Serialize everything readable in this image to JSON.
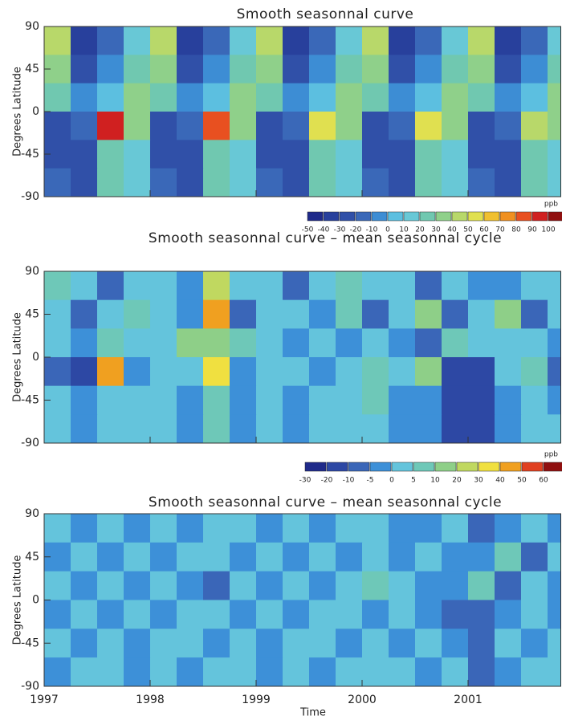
{
  "chart_data": [
    {
      "type": "heatmap",
      "title": "Smooth seasonnal curve",
      "ylabel": "Degrees Latitude",
      "x": [
        1997.125,
        1997.375,
        1997.625,
        1997.875,
        1998.125,
        1998.375,
        1998.625,
        1998.875,
        1999.125,
        1999.375,
        1999.625,
        1999.875,
        2000.125,
        2000.375,
        2000.625,
        2000.875,
        2001.125,
        2001.375,
        2001.625,
        2001.875
      ],
      "y": [
        75,
        45,
        15,
        -15,
        -45,
        -75
      ],
      "z": [
        [
          40,
          -40,
          -20,
          10,
          40,
          -40,
          -20,
          10,
          40,
          -40,
          -20,
          10,
          40,
          -40,
          -20,
          10,
          40,
          -40,
          -20,
          10
        ],
        [
          30,
          -30,
          -10,
          20,
          30,
          -30,
          -10,
          20,
          30,
          -30,
          -10,
          20,
          30,
          -30,
          -10,
          20,
          30,
          -30,
          -10,
          20
        ],
        [
          20,
          -10,
          0,
          30,
          20,
          -10,
          0,
          30,
          20,
          -10,
          0,
          30,
          20,
          -10,
          0,
          30,
          20,
          -10,
          0,
          30
        ],
        [
          -30,
          -20,
          90,
          30,
          -30,
          -20,
          80,
          30,
          -30,
          -20,
          50,
          30,
          -30,
          -20,
          50,
          30,
          -30,
          -20,
          40,
          30
        ],
        [
          -30,
          -30,
          20,
          10,
          -30,
          -30,
          20,
          10,
          -30,
          -30,
          20,
          10,
          -30,
          -30,
          20,
          10,
          -30,
          -30,
          20,
          10
        ],
        [
          -20,
          -30,
          20,
          10,
          -20,
          -30,
          20,
          10,
          -20,
          -30,
          20,
          10,
          -20,
          -30,
          20,
          10,
          -20,
          -30,
          20,
          10
        ]
      ],
      "xlim": [
        1997,
        2001.875
      ],
      "xticks": [
        1997,
        1998,
        1999,
        2000,
        2001
      ],
      "ylim": [
        -90,
        90
      ],
      "yticks": [
        90,
        45,
        0,
        -45,
        -90
      ],
      "unit": "ppb",
      "levels": [
        -50,
        -40,
        -30,
        -20,
        -10,
        0,
        10,
        20,
        30,
        40,
        50,
        60,
        70,
        80,
        90,
        100
      ],
      "colors": [
        "#1f2a8a",
        "#28409c",
        "#3050a8",
        "#3a68b8",
        "#3d8dd4",
        "#5cbfe0",
        "#68c8d6",
        "#70c8b0",
        "#8fd08a",
        "#b8d86a",
        "#e0e050",
        "#f0c030",
        "#f09020",
        "#e85020",
        "#d02020",
        "#901010"
      ]
    },
    {
      "type": "heatmap",
      "title": "Smooth seasonnal curve – mean seasonnal cycle",
      "ylabel": "Degrees Latitude",
      "x": [
        1997.125,
        1997.375,
        1997.625,
        1997.875,
        1998.125,
        1998.375,
        1998.625,
        1998.875,
        1999.125,
        1999.375,
        1999.625,
        1999.875,
        2000.125,
        2000.375,
        2000.625,
        2000.875,
        2001.125,
        2001.375,
        2001.625,
        2001.875
      ],
      "y": [
        75,
        45,
        15,
        -15,
        -45,
        -75
      ],
      "z": [
        [
          5,
          0,
          -10,
          0,
          0,
          -5,
          20,
          0,
          0,
          -10,
          0,
          5,
          0,
          0,
          -10,
          0,
          -5,
          -5,
          0,
          0
        ],
        [
          0,
          -10,
          0,
          5,
          0,
          -5,
          40,
          -10,
          0,
          0,
          -5,
          5,
          -10,
          0,
          10,
          -10,
          0,
          10,
          -10,
          0
        ],
        [
          0,
          -5,
          5,
          0,
          0,
          10,
          10,
          5,
          0,
          -5,
          0,
          -5,
          0,
          -5,
          -10,
          5,
          0,
          0,
          0,
          -5
        ],
        [
          -10,
          -20,
          40,
          -5,
          0,
          0,
          30,
          -5,
          0,
          0,
          -5,
          0,
          5,
          0,
          10,
          -20,
          -20,
          0,
          5,
          -10
        ],
        [
          0,
          -5,
          0,
          0,
          0,
          -5,
          5,
          -5,
          0,
          -5,
          0,
          0,
          5,
          -5,
          -5,
          -20,
          -20,
          -5,
          0,
          -5
        ],
        [
          0,
          -5,
          0,
          0,
          0,
          -5,
          5,
          -5,
          0,
          -5,
          0,
          0,
          0,
          -5,
          -5,
          -20,
          -20,
          -5,
          0,
          0
        ]
      ],
      "xlim": [
        1997,
        2001.875
      ],
      "xticks": [
        1997,
        1998,
        1999,
        2000,
        2001
      ],
      "ylim": [
        -90,
        90
      ],
      "yticks": [
        90,
        45,
        0,
        -45,
        -90
      ],
      "unit": "ppb",
      "levels": [
        -30,
        -20,
        -10,
        -5,
        0,
        5,
        10,
        20,
        30,
        40,
        50,
        60
      ],
      "colors": [
        "#1f2a8a",
        "#2d48a4",
        "#3a66b8",
        "#3d90d8",
        "#64c4dc",
        "#6ec8b8",
        "#8ecf88",
        "#c0d860",
        "#f0e040",
        "#f0a020",
        "#e04020",
        "#901010"
      ]
    },
    {
      "type": "heatmap",
      "title": "Smooth seasonnal curve – mean seasonnal cycle",
      "ylabel": "Degrees Latitude",
      "xlabel": "Time",
      "x": [
        1997.125,
        1997.375,
        1997.625,
        1997.875,
        1998.125,
        1998.375,
        1998.625,
        1998.875,
        1999.125,
        1999.375,
        1999.625,
        1999.875,
        2000.125,
        2000.375,
        2000.625,
        2000.875,
        2001.125,
        2001.375,
        2001.625,
        2001.875
      ],
      "y": [
        75,
        45,
        15,
        -15,
        -45,
        -75
      ],
      "z": [
        [
          0,
          -5,
          0,
          -5,
          0,
          -5,
          0,
          0,
          -5,
          0,
          -5,
          0,
          0,
          -5,
          -5,
          0,
          -10,
          -5,
          0,
          -5
        ],
        [
          -5,
          0,
          -5,
          0,
          -5,
          0,
          0,
          -5,
          0,
          -5,
          0,
          -5,
          0,
          -5,
          0,
          -5,
          -5,
          5,
          -10,
          0
        ],
        [
          0,
          -5,
          0,
          -5,
          0,
          -5,
          -10,
          0,
          -5,
          0,
          -5,
          0,
          5,
          0,
          -5,
          -5,
          5,
          -10,
          0,
          -5
        ],
        [
          -5,
          0,
          -5,
          0,
          -5,
          0,
          0,
          -5,
          0,
          -5,
          0,
          0,
          -5,
          0,
          -5,
          -10,
          -10,
          -5,
          0,
          -5
        ],
        [
          0,
          -5,
          0,
          -5,
          0,
          0,
          -5,
          0,
          -5,
          0,
          0,
          -5,
          0,
          -5,
          0,
          -5,
          -10,
          0,
          -5,
          0
        ],
        [
          -5,
          0,
          0,
          -5,
          0,
          -5,
          0,
          0,
          -5,
          0,
          -5,
          0,
          0,
          0,
          -5,
          0,
          -10,
          -5,
          0,
          0
        ]
      ],
      "xlim": [
        1997,
        2001.875
      ],
      "xticks": [
        1997,
        1998,
        1999,
        2000,
        2001
      ],
      "ylim": [
        -90,
        90
      ],
      "yticks": [
        90,
        45,
        0,
        -45,
        -90
      ],
      "levels": [
        -30,
        -20,
        -10,
        -5,
        0,
        5,
        10,
        20,
        30,
        40,
        50,
        60
      ],
      "colors": [
        "#1f2a8a",
        "#2d48a4",
        "#3a66b8",
        "#3d90d8",
        "#64c4dc",
        "#6ec8b8",
        "#8ecf88",
        "#c0d860",
        "#f0e040",
        "#f0a020",
        "#e04020",
        "#901010"
      ]
    }
  ]
}
